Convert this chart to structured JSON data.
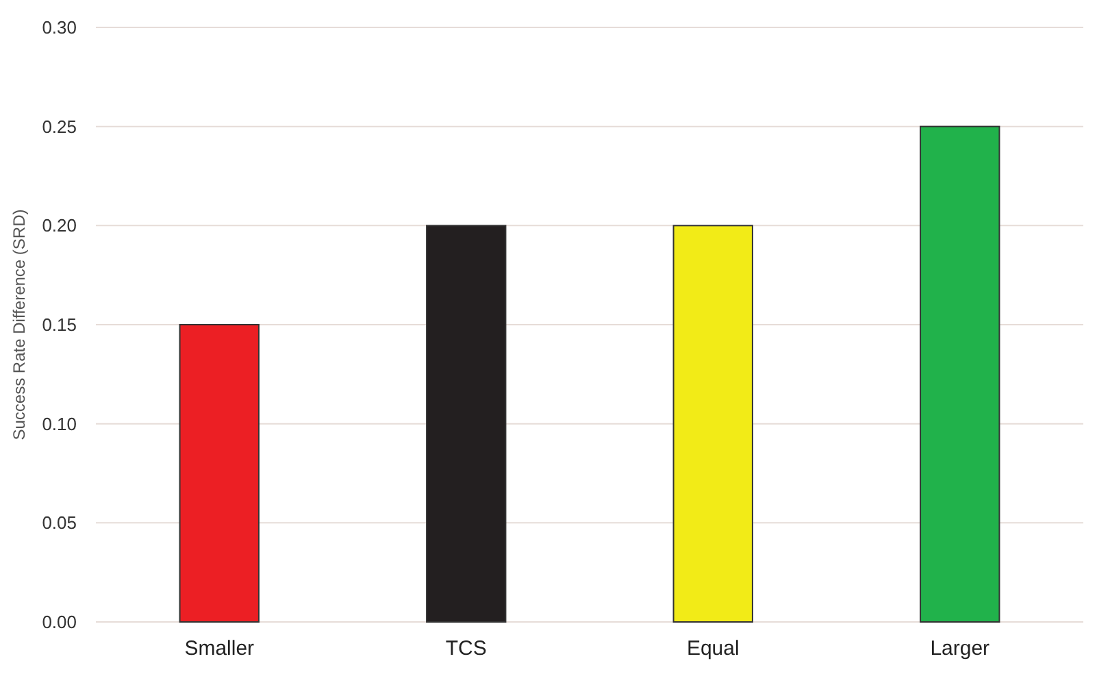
{
  "chart_data": {
    "type": "bar",
    "ylabel": "Success Rate Difference (SRD)",
    "categories": [
      "Smaller",
      "TCS",
      "Equal",
      "Larger"
    ],
    "values": [
      0.15,
      0.2,
      0.2,
      0.25
    ],
    "colors": [
      "#ec1f24",
      "#231f20",
      "#f2eb17",
      "#21b24b"
    ],
    "ylim": [
      0,
      0.3
    ],
    "yticks": [
      {
        "value": 0,
        "label": "0.00"
      },
      {
        "value": 0.05,
        "label": "0.05"
      },
      {
        "value": 0.1,
        "label": "0.10"
      },
      {
        "value": 0.15,
        "label": "0.15"
      },
      {
        "value": 0.2,
        "label": "0.20"
      },
      {
        "value": 0.25,
        "label": "0.25"
      },
      {
        "value": 0.3,
        "label": "0.30"
      }
    ],
    "grid": "y"
  }
}
